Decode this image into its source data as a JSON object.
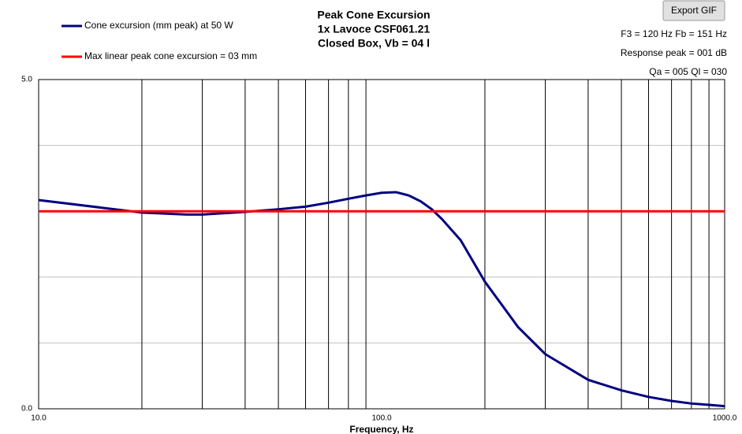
{
  "chart_data": {
    "type": "line",
    "title": [
      "Peak Cone Excursion",
      "1x Lavoce CSF061.21",
      "Closed Box, Vb = 04 l"
    ],
    "x_label": "Frequency, Hz",
    "annotations": [
      "F3 = 120 Hz  Fb = 151 Hz",
      "Response peak = 001 dB",
      "Qa = 005  Ql = 030"
    ],
    "log_x": true,
    "xlim": [
      10,
      1000
    ],
    "ylim": [
      0,
      5
    ],
    "xticks": [
      {
        "value": 10,
        "label": "10.0"
      },
      {
        "value": 100,
        "label": "100.0"
      },
      {
        "value": 1000,
        "label": "1000.0"
      }
    ],
    "yticks": [
      {
        "value": 0,
        "label": "0.0"
      },
      {
        "value": 5,
        "label": "5.0"
      }
    ],
    "x_grid": [
      20,
      30,
      40,
      50,
      60,
      70,
      80,
      90,
      200,
      300,
      400,
      500,
      600,
      700,
      800,
      900
    ],
    "y_grid": [
      1,
      2,
      3,
      4
    ],
    "series": [
      {
        "name": "Cone excursion (mm peak) at 50 W",
        "color": "#000080",
        "x": [
          10,
          20,
          27,
          30,
          40,
          50,
          60,
          70,
          80,
          90,
          100,
          110,
          120,
          130,
          140,
          150,
          170,
          200,
          250,
          300,
          400,
          500,
          600,
          700,
          800,
          900,
          1000
        ],
        "values": [
          3.17,
          2.98,
          2.95,
          2.95,
          2.99,
          3.03,
          3.07,
          3.13,
          3.19,
          3.24,
          3.28,
          3.29,
          3.24,
          3.15,
          3.03,
          2.88,
          2.56,
          1.93,
          1.24,
          0.83,
          0.44,
          0.28,
          0.18,
          0.12,
          0.08,
          0.06,
          0.04
        ]
      },
      {
        "name": "Max linear peak cone excursion = 03 mm",
        "color": "#ff0000",
        "x": [
          10,
          1000
        ],
        "values": [
          3,
          3
        ]
      }
    ]
  },
  "toolbar": {
    "export_button": "Export GIF"
  }
}
